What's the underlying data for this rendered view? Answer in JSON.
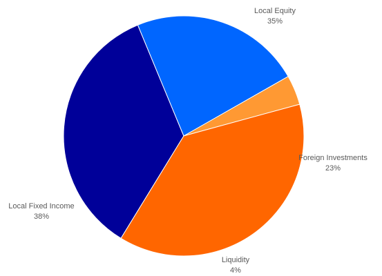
{
  "chart_data": {
    "type": "pie",
    "title": "",
    "legend": "none",
    "slices": [
      {
        "label": "Local Equity",
        "value": 35,
        "value_label": "35%",
        "color": "#000099"
      },
      {
        "label": "Foreign Investments",
        "value": 23,
        "value_label": "23%",
        "color": "#0066FF"
      },
      {
        "label": "Liquidity",
        "value": 4,
        "value_label": "4%",
        "color": "#FF9933"
      },
      {
        "label": "Local Fixed Income",
        "value": 38,
        "value_label": "38%",
        "color": "#FF6600"
      }
    ]
  }
}
